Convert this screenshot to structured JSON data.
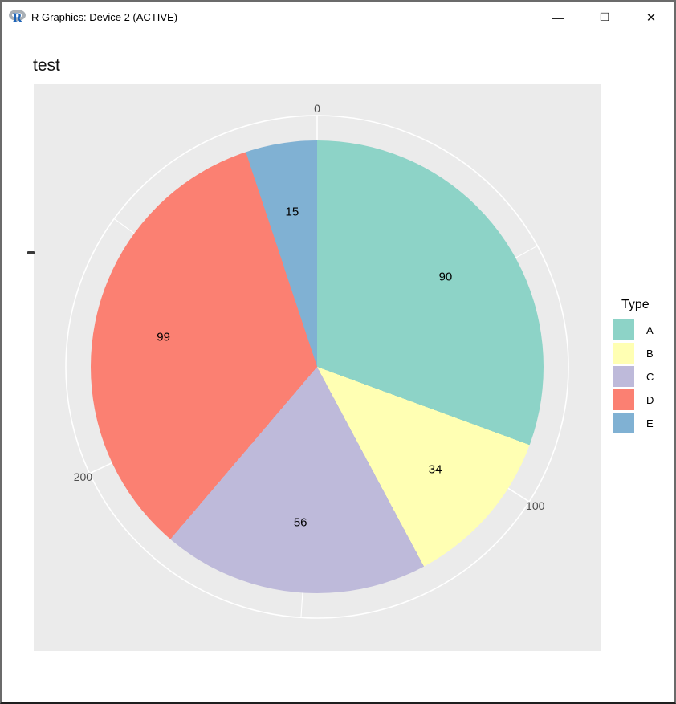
{
  "window": {
    "title": "R Graphics: Device 2 (ACTIVE)"
  },
  "icons": {
    "r_logo": "R",
    "minimize": "—",
    "maximize": "□",
    "close": "✕"
  },
  "chart_data": {
    "type": "pie",
    "title": "test",
    "legend_title": "Type",
    "legend_position": "right",
    "categories": [
      "A",
      "B",
      "C",
      "D",
      "E"
    ],
    "values": [
      90,
      34,
      56,
      99,
      15
    ],
    "slice_labels": [
      "90",
      "34",
      "56",
      "99",
      "15"
    ],
    "colors": [
      "#8DD3C7",
      "#FFFFB3",
      "#BEBADA",
      "#FB8072",
      "#80B1D3"
    ],
    "start_angle_deg": 0,
    "direction": "clockwise",
    "axis_breaks": [
      0,
      100,
      200
    ],
    "axis_minor_breaks": [
      50,
      150,
      250
    ],
    "panel_bg": "#EBEBEB",
    "gridline_color": "#FFFFFF",
    "axis_text_color": "#4D4D4D",
    "label_color": "#000000",
    "grid_on": true
  }
}
